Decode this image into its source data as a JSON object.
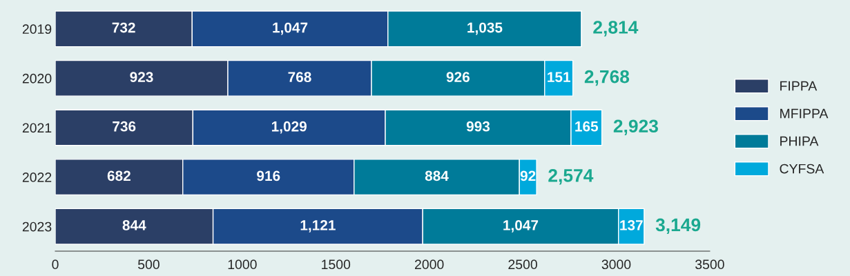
{
  "chart_data": {
    "type": "bar",
    "orientation": "horizontal",
    "stacked": true,
    "categories": [
      "2019",
      "2020",
      "2021",
      "2022",
      "2023"
    ],
    "series": [
      {
        "name": "FIPPA",
        "color": "#2b3f66",
        "values": [
          732,
          923,
          736,
          682,
          844
        ],
        "value_labels": [
          "732",
          "923",
          "736",
          "682",
          "844"
        ]
      },
      {
        "name": "MFIPPA",
        "color": "#1c4a8a",
        "values": [
          1047,
          768,
          1029,
          916,
          1121
        ],
        "value_labels": [
          "1,047",
          "768",
          "1,029",
          "916",
          "1,121"
        ]
      },
      {
        "name": "PHIPA",
        "color": "#007b99",
        "values": [
          1035,
          926,
          993,
          884,
          1047
        ],
        "value_labels": [
          "1,035",
          "926",
          "993",
          "884",
          "1,047"
        ]
      },
      {
        "name": "CYFSA",
        "color": "#00a9dc",
        "values": [
          null,
          151,
          165,
          92,
          137
        ],
        "value_labels": [
          null,
          "151",
          "165",
          "92",
          "137"
        ]
      }
    ],
    "totals": [
      "2,814",
      "2,768",
      "2,923",
      "2,574",
      "3,149"
    ],
    "xlim": [
      0,
      3500
    ],
    "xticks": [
      0,
      500,
      1000,
      1500,
      2000,
      2500,
      3000,
      3500
    ],
    "legend": "right",
    "grid": false
  }
}
